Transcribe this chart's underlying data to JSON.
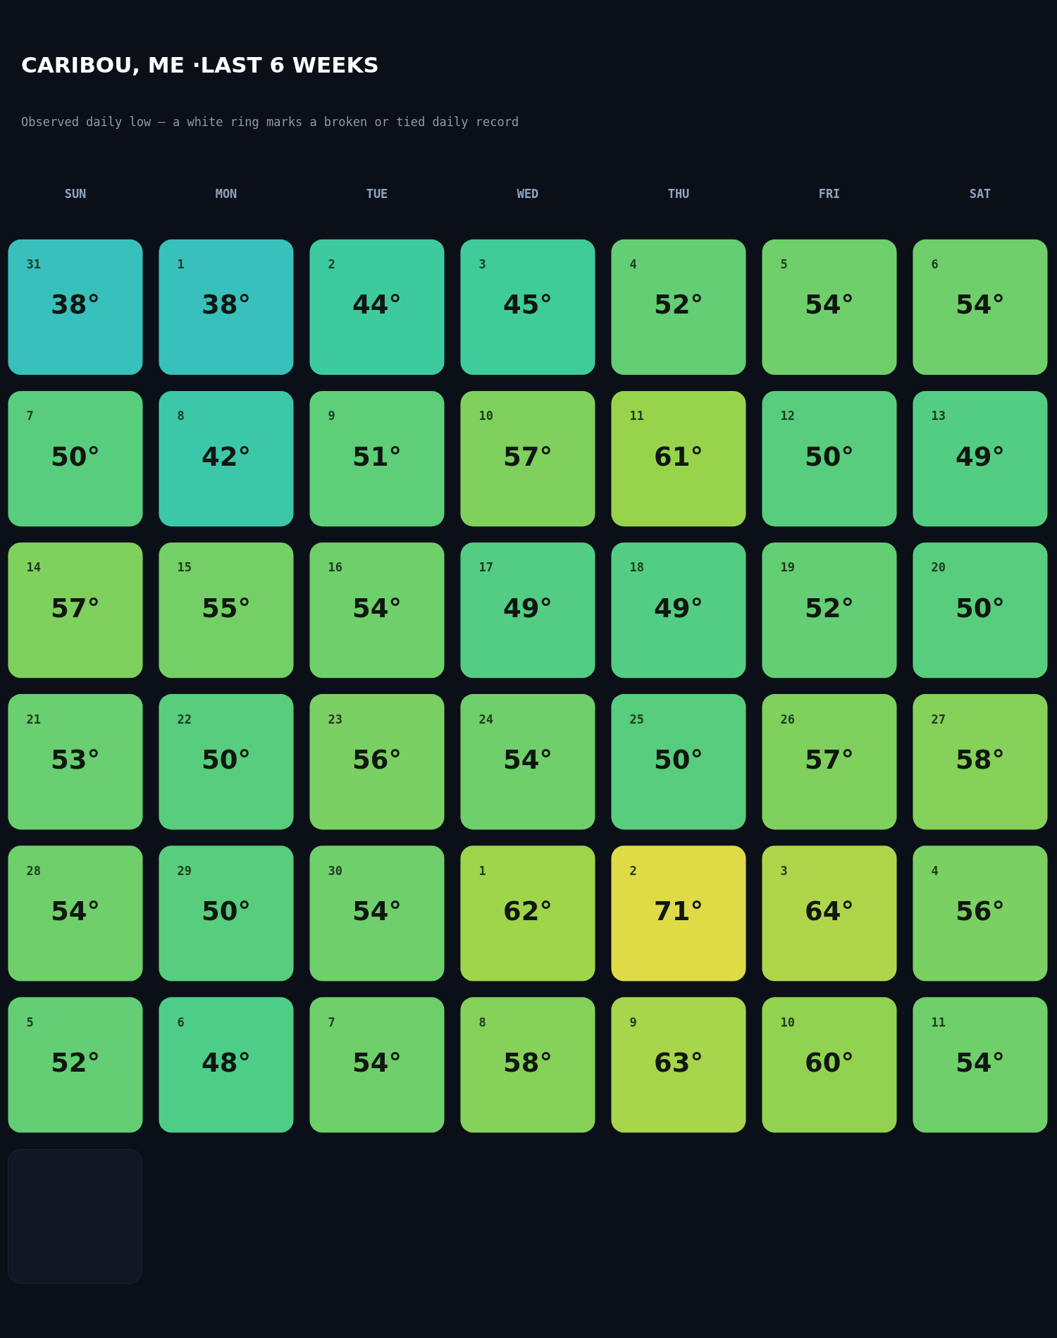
{
  "chart_data": {
    "type": "heatmap",
    "title": "CARIBOU, ME ·LAST 6 WEEKS",
    "subtitle": "Observed daily low — a white ring marks a broken or tied daily record",
    "categories": [
      "SUN",
      "MON",
      "TUE",
      "WED",
      "THU",
      "FRI",
      "SAT"
    ],
    "y_categories": [
      null,
      null,
      null,
      null,
      null,
      null
    ],
    "cells": [
      [
        38,
        38,
        44,
        45,
        52,
        54,
        54
      ],
      [
        50,
        42,
        51,
        57,
        61,
        50,
        49
      ],
      [
        57,
        55,
        54,
        49,
        49,
        52,
        50
      ],
      [
        53,
        50,
        56,
        54,
        50,
        57,
        58
      ],
      [
        54,
        50,
        54,
        62,
        71,
        64,
        56
      ],
      [
        52,
        48,
        54,
        58,
        63,
        60,
        54
      ]
    ],
    "cell_labels": [
      [
        "38°",
        "38°",
        "44°",
        "45°",
        "52°",
        "54°",
        "54°"
      ],
      [
        "50°",
        "42°",
        "51°",
        "57°",
        "61°",
        "50°",
        "49°"
      ],
      [
        "57°",
        "55°",
        "54°",
        "49°",
        "49°",
        "52°",
        "50°"
      ],
      [
        "53°",
        "50°",
        "56°",
        "54°",
        "50°",
        "57°",
        "58°"
      ],
      [
        "54°",
        "50°",
        "54°",
        "62°",
        "71°",
        "64°",
        "56°"
      ],
      [
        "52°",
        "48°",
        "54°",
        "58°",
        "63°",
        "60°",
        "54°"
      ]
    ],
    "annotations": [
      "31",
      "1",
      "2",
      "3",
      "4",
      "5",
      "6",
      "7",
      "8",
      "9",
      "10",
      "11",
      "12",
      "13",
      "14",
      "15",
      "16",
      "17",
      "18",
      "19",
      "20",
      "21",
      "22",
      "23",
      "24",
      "25",
      "26",
      "27",
      "28",
      "29",
      "30",
      "1",
      "2",
      "3",
      "4",
      "5",
      "6",
      "7",
      "8",
      "9",
      "10",
      "11"
    ]
  }
}
